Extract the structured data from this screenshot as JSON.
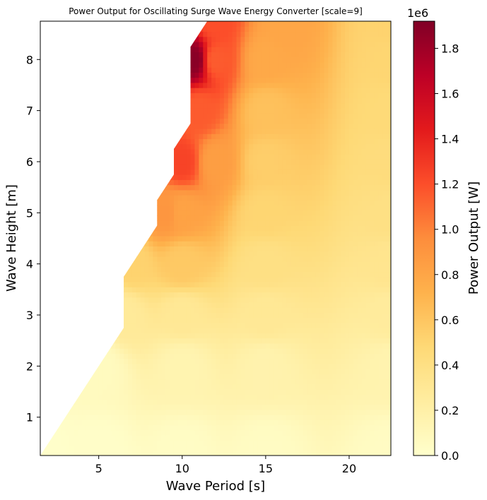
{
  "chart_data": {
    "type": "heatmap",
    "title": "Power Output for Oscillating Surge Wave Energy Converter [scale=9]",
    "xlabel": "Wave Period [s]",
    "ylabel": "Wave Height [m]",
    "xlim": [
      1.5,
      22.5
    ],
    "ylim": [
      0.25,
      8.75
    ],
    "xticks": [
      5,
      10,
      15,
      20
    ],
    "yticks": [
      1,
      2,
      3,
      4,
      5,
      6,
      7,
      8
    ],
    "colorbar": {
      "label": "Power Output [W]",
      "offset_text": "1e6",
      "multiplier": 1000000,
      "range": [
        0,
        1.92
      ],
      "ticks": [
        0.0,
        0.2,
        0.4,
        0.6,
        0.8,
        1.0,
        1.2,
        1.4,
        1.6,
        1.8
      ],
      "colormap": "YlOrRd",
      "stops": [
        "#ffffcc",
        "#ffeda0",
        "#fed976",
        "#feb24c",
        "#fd8d3c",
        "#fc4e2a",
        "#e31a1c",
        "#bd0026",
        "#800026"
      ]
    },
    "valid_region_boundary": [
      [
        1.5,
        0.25
      ],
      [
        6.5,
        2.75
      ],
      [
        6.5,
        3.75
      ],
      [
        8.5,
        4.75
      ],
      [
        8.5,
        5.25
      ],
      [
        9.5,
        5.75
      ],
      [
        9.5,
        6.25
      ],
      [
        10.5,
        6.75
      ],
      [
        10.5,
        8.25
      ],
      [
        11.5,
        8.75
      ]
    ],
    "field_points": [
      [
        1.5,
        0.25,
        0.01
      ],
      [
        5,
        0.25,
        0.02
      ],
      [
        10,
        0.25,
        0.04
      ],
      [
        15,
        0.25,
        0.05
      ],
      [
        22.5,
        0.25,
        0.05
      ],
      [
        5,
        2,
        0.07
      ],
      [
        10,
        2,
        0.15
      ],
      [
        15,
        2,
        0.17
      ],
      [
        22.5,
        2,
        0.16
      ],
      [
        6.5,
        3,
        0.28
      ],
      [
        10,
        3,
        0.3
      ],
      [
        15,
        3,
        0.3
      ],
      [
        22.5,
        3,
        0.26
      ],
      [
        7,
        4,
        0.52
      ],
      [
        10,
        4,
        0.58
      ],
      [
        15,
        4,
        0.4
      ],
      [
        22.5,
        4,
        0.34
      ],
      [
        9,
        5,
        0.9
      ],
      [
        10,
        5,
        0.82
      ],
      [
        15,
        5,
        0.5
      ],
      [
        22.5,
        5,
        0.4
      ],
      [
        10,
        6,
        1.25
      ],
      [
        12,
        6,
        0.85
      ],
      [
        15,
        6,
        0.55
      ],
      [
        22.5,
        6,
        0.44
      ],
      [
        11,
        7,
        1.15
      ],
      [
        15,
        7,
        0.63
      ],
      [
        22.5,
        7,
        0.47
      ],
      [
        10.7,
        8,
        1.88
      ],
      [
        12,
        8,
        1.15
      ],
      [
        15,
        8,
        0.78
      ],
      [
        22.5,
        8,
        0.5
      ],
      [
        12,
        8.75,
        1.2
      ],
      [
        16,
        8.75,
        0.8
      ],
      [
        22.5,
        8.75,
        0.52
      ]
    ]
  }
}
